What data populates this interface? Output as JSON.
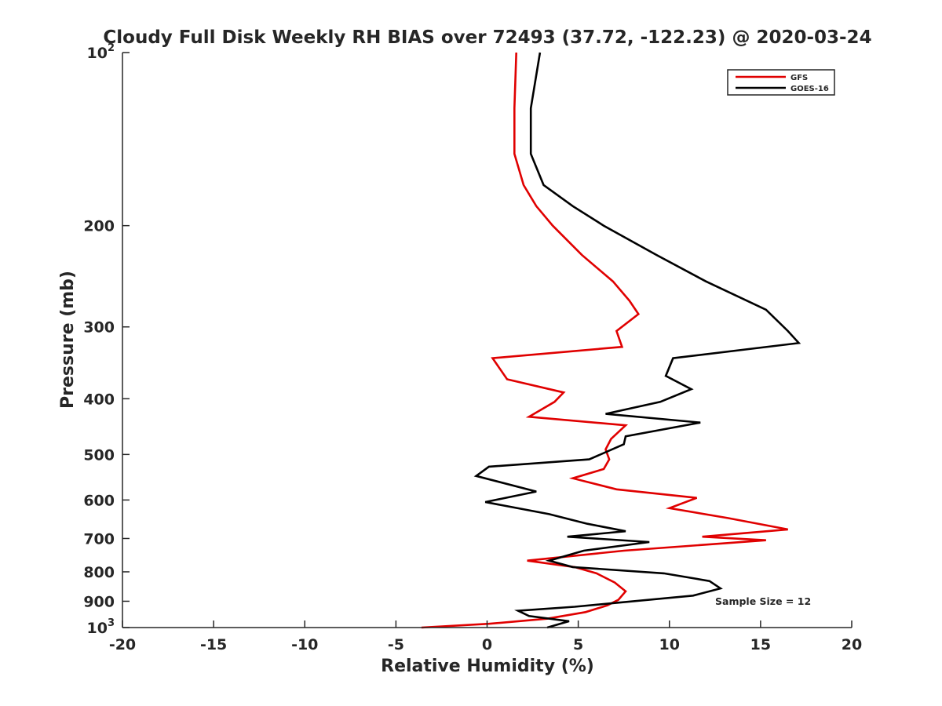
{
  "chart_data": {
    "type": "line",
    "title": "Cloudy Full Disk Weekly RH BIAS over 72493 (37.72, -122.23) @ 2020-03-24",
    "xlabel": "Relative Humidity (%)",
    "ylabel": "Pressure (mb)",
    "xlim": [
      -20,
      20
    ],
    "ylim": [
      100,
      1000
    ],
    "y_scale": "log",
    "y_reversed": true,
    "x_ticks": [
      -20,
      -15,
      -10,
      -5,
      0,
      5,
      10,
      15,
      20
    ],
    "x_tick_labels": [
      "-20",
      "-15",
      "-10",
      "-5",
      "0",
      "5",
      "10",
      "15",
      "20"
    ],
    "y_ticks": [
      100,
      200,
      300,
      400,
      500,
      600,
      700,
      800,
      900,
      1000
    ],
    "y_tick_labels": [
      "10^2",
      "200",
      "300",
      "400",
      "500",
      "600",
      "700",
      "800",
      "900",
      "10^3"
    ],
    "legend_position": "top-right",
    "annotation": "Sample Size = 12",
    "series": [
      {
        "name": "GFS",
        "color": "#e00000",
        "points": [
          [
            1.6,
            100
          ],
          [
            1.5,
            125
          ],
          [
            1.5,
            150
          ],
          [
            2.0,
            170
          ],
          [
            2.7,
            185
          ],
          [
            3.6,
            200
          ],
          [
            5.2,
            225
          ],
          [
            6.9,
            250
          ],
          [
            7.8,
            270
          ],
          [
            8.3,
            285
          ],
          [
            7.1,
            305
          ],
          [
            7.4,
            325
          ],
          [
            0.3,
            340
          ],
          [
            1.1,
            370
          ],
          [
            4.2,
            390
          ],
          [
            3.7,
            405
          ],
          [
            2.3,
            430
          ],
          [
            7.6,
            445
          ],
          [
            6.8,
            470
          ],
          [
            6.5,
            490
          ],
          [
            6.7,
            510
          ],
          [
            6.4,
            530
          ],
          [
            4.7,
            550
          ],
          [
            7.1,
            575
          ],
          [
            11.5,
            595
          ],
          [
            10.0,
            620
          ],
          [
            13.2,
            645
          ],
          [
            16.5,
            675
          ],
          [
            11.8,
            695
          ],
          [
            15.3,
            705
          ],
          [
            7.5,
            735
          ],
          [
            2.2,
            765
          ],
          [
            4.8,
            785
          ],
          [
            6.0,
            805
          ],
          [
            7.0,
            835
          ],
          [
            7.6,
            865
          ],
          [
            7.2,
            895
          ],
          [
            6.6,
            915
          ],
          [
            5.4,
            940
          ],
          [
            3.3,
            965
          ],
          [
            0.1,
            985
          ],
          [
            -3.6,
            1000
          ]
        ]
      },
      {
        "name": "GOES-16",
        "color": "#000000",
        "points": [
          [
            2.9,
            100
          ],
          [
            2.4,
            125
          ],
          [
            2.4,
            150
          ],
          [
            3.1,
            170
          ],
          [
            4.7,
            185
          ],
          [
            6.4,
            200
          ],
          [
            9.3,
            225
          ],
          [
            12.0,
            250
          ],
          [
            15.3,
            280
          ],
          [
            16.5,
            305
          ],
          [
            17.1,
            320
          ],
          [
            10.2,
            340
          ],
          [
            9.8,
            365
          ],
          [
            11.2,
            385
          ],
          [
            9.5,
            405
          ],
          [
            6.5,
            425
          ],
          [
            11.7,
            440
          ],
          [
            7.6,
            465
          ],
          [
            7.5,
            480
          ],
          [
            5.6,
            510
          ],
          [
            0.1,
            525
          ],
          [
            -0.6,
            545
          ],
          [
            2.7,
            580
          ],
          [
            -0.1,
            605
          ],
          [
            3.4,
            635
          ],
          [
            5.5,
            660
          ],
          [
            7.6,
            680
          ],
          [
            4.4,
            695
          ],
          [
            8.9,
            710
          ],
          [
            5.3,
            735
          ],
          [
            3.4,
            765
          ],
          [
            4.7,
            785
          ],
          [
            9.7,
            805
          ],
          [
            12.2,
            830
          ],
          [
            12.8,
            855
          ],
          [
            11.3,
            880
          ],
          [
            4.8,
            920
          ],
          [
            1.7,
            935
          ],
          [
            2.3,
            955
          ],
          [
            4.5,
            975
          ],
          [
            3.3,
            1000
          ]
        ]
      }
    ]
  }
}
